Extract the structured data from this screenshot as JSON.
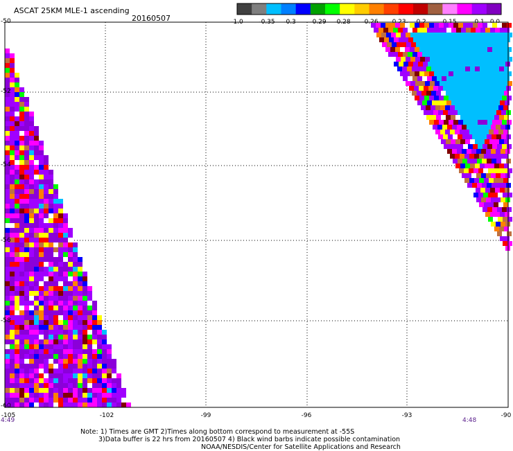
{
  "title": "ASCAT 25KM MLE-1 ascending",
  "date": "20160507",
  "colorbar": {
    "ticks": [
      "-1.0",
      "-0.35",
      "-0.3",
      "-0.29",
      "-0.28",
      "-0.26",
      "-0.23",
      "-0.2",
      "-0.15",
      "-0.1",
      "0.0"
    ],
    "colors": [
      "#404040",
      "#7f7f7f",
      "#00bfff",
      "#0080ff",
      "#0000ff",
      "#00a000",
      "#00ff00",
      "#ffff00",
      "#ffcc00",
      "#ff8000",
      "#ff4000",
      "#ff0000",
      "#c00000",
      "#a06040",
      "#ff80ff",
      "#ff00ff",
      "#a000ff",
      "#8000c0"
    ]
  },
  "axes": {
    "lon_min": -105,
    "lon_max": -90,
    "lat_min": -60,
    "lat_max": -50,
    "x_ticks": [
      "-105",
      "-102",
      "-99",
      "-96",
      "-93",
      "-90"
    ],
    "y_ticks": [
      "-50",
      "-52",
      "-54",
      "-56",
      "-58",
      "-60"
    ],
    "y_values": [
      -50,
      -52,
      -54,
      -56,
      -58,
      -60
    ],
    "x_values": [
      -105,
      -102,
      -99,
      -96,
      -93,
      -90
    ],
    "grid": "dotted"
  },
  "times": {
    "left": "4:49",
    "right": "4:48"
  },
  "notes": {
    "line1": "Note: 1) Times are GMT 2)Times along bottom correspond to measurement at -55S",
    "line2": "3)Data buffer is 22 hrs from 20160507 4) Black wind barbs indicate possible contamination",
    "line3": "NOAA/NESDIS/Center for Satellite Applications and Research"
  },
  "swaths": {
    "palette": [
      "#8b00d9",
      "#a000ff",
      "#ff00ff",
      "#ff0000",
      "#ff8000",
      "#ffff00",
      "#00ff00",
      "#0000ff",
      "#00bfff",
      "#800000",
      "#ffffff",
      "#c07040"
    ]
  }
}
